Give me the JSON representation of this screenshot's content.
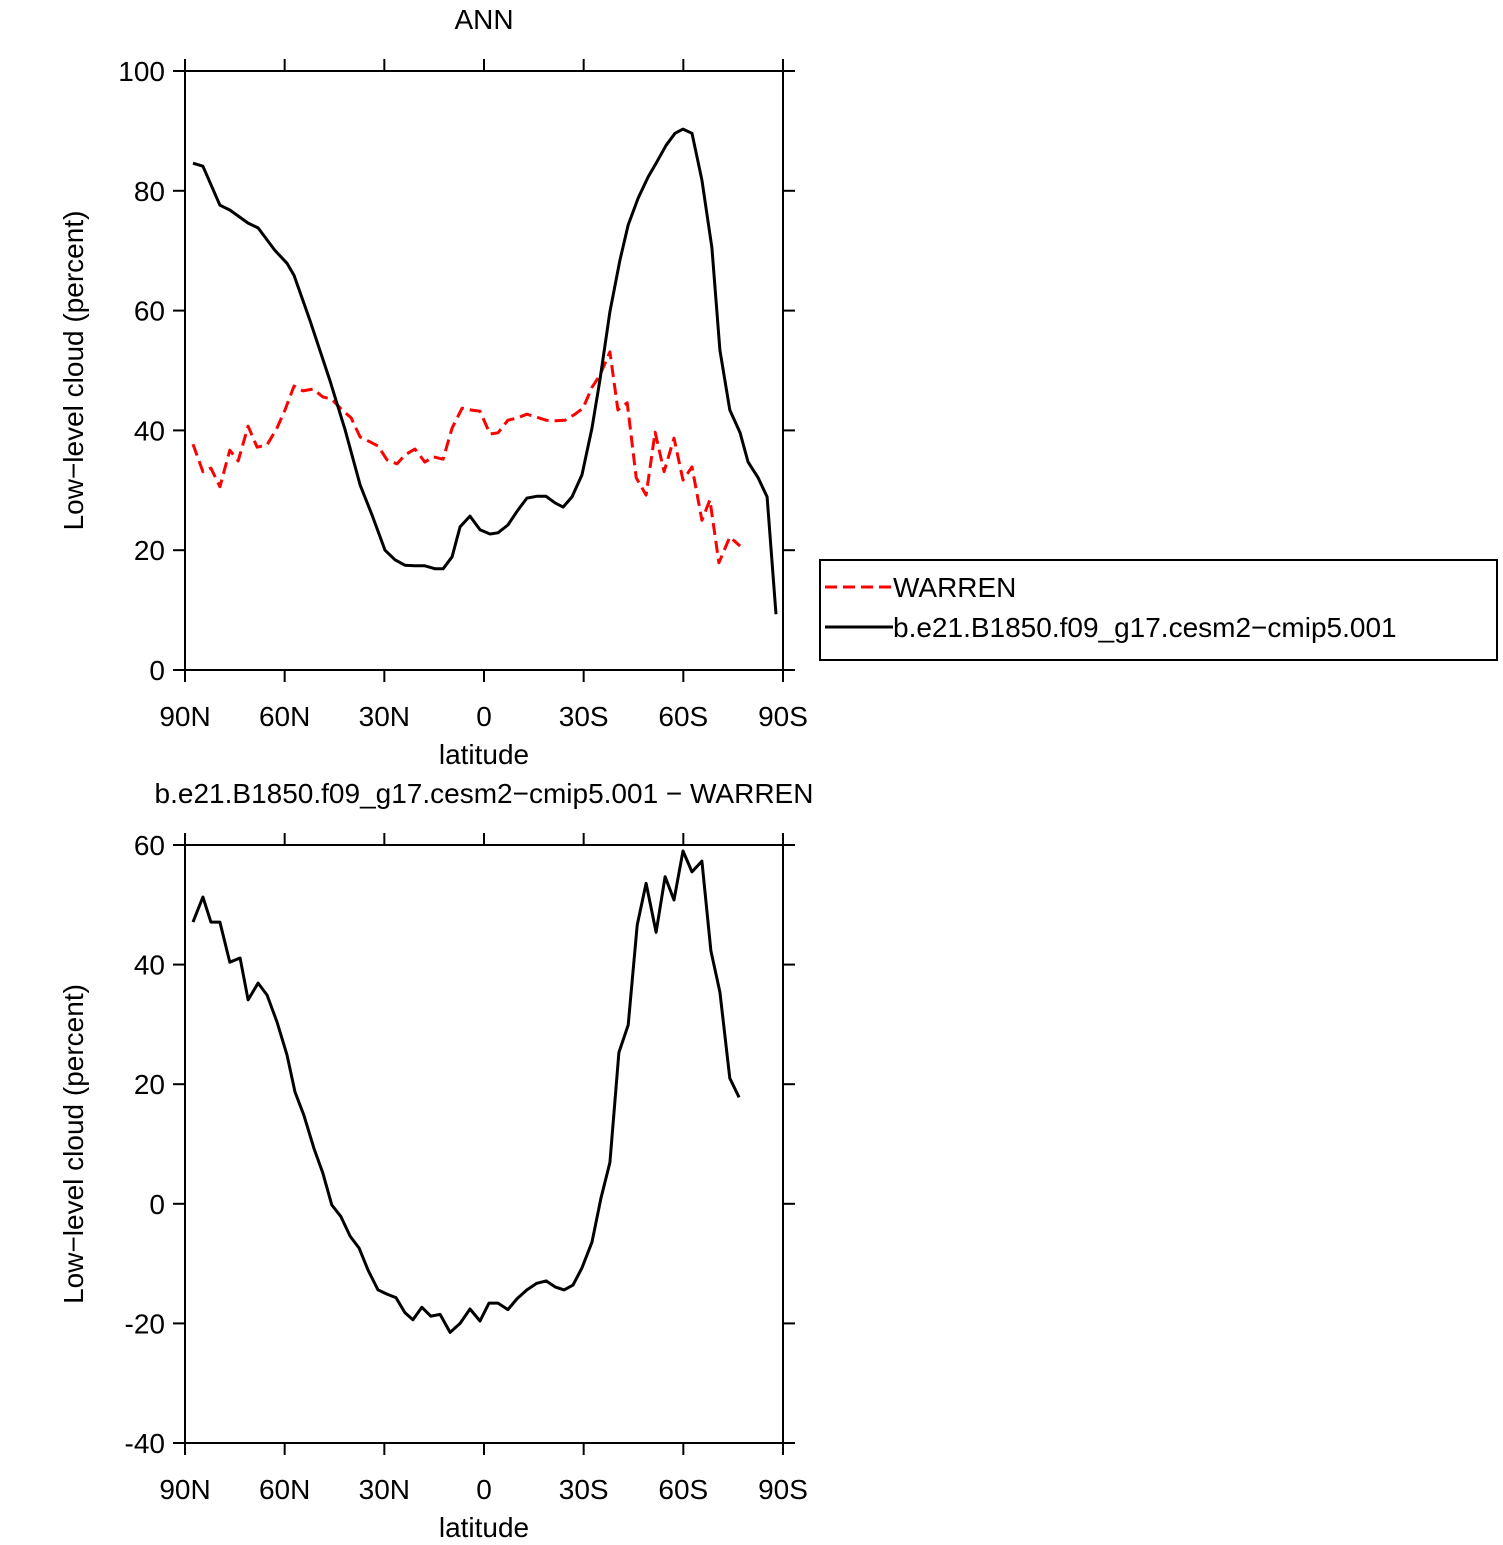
{
  "chart_data": [
    {
      "type": "line",
      "title": "ANN",
      "x_label": "latitude",
      "y_label": "Low−level cloud (percent)",
      "xlim": [
        90,
        -90
      ],
      "xticks": [
        {
          "value": 90,
          "label": "90N"
        },
        {
          "value": 60,
          "label": "60N"
        },
        {
          "value": 30,
          "label": "30N"
        },
        0,
        {
          "value": -30,
          "label": "30S"
        },
        {
          "value": -60,
          "label": "60S"
        },
        {
          "value": -90,
          "label": "90S"
        }
      ],
      "ylim": [
        0,
        100
      ],
      "yticks": [
        0,
        20,
        40,
        60,
        80,
        100
      ],
      "legend": "right",
      "series": [
        {
          "name": "WARREN",
          "color": "#ff0000",
          "dashed": true,
          "x": [
            87.6,
            84.6,
            82.2,
            79.5,
            76.5,
            74,
            71,
            68.3,
            65.3,
            62.3,
            59.9,
            57.2,
            54.5,
            51.5,
            48.5,
            45.8,
            42.7,
            40,
            37.3,
            34.3,
            31.9,
            29.2,
            26.2,
            23.8,
            20.8,
            17.8,
            15.3,
            12.3,
            9.6,
            6.6,
            3.9,
            1.2,
            -1.8,
            -4.2,
            -7.2,
            -10.2,
            -12.9,
            -15.9,
            -18.7,
            -21.4,
            -24.4,
            -27.4,
            -29.8,
            -32.5,
            -34.9,
            -37.9,
            -40.3,
            -43.1,
            -45.8,
            -48.8,
            -51.5,
            -54.2,
            -57.2,
            -59.9,
            -62.6,
            -65.6,
            -68,
            -70.7,
            -74,
            -77.1
          ],
          "values": [
            37.7,
            33.1,
            33.7,
            30.6,
            36.7,
            34.9,
            40.7,
            37.2,
            37.6,
            40.4,
            43.4,
            47.4,
            46.6,
            46.9,
            45.6,
            45.2,
            43.4,
            42.1,
            38.9,
            38.1,
            37.4,
            35.1,
            34.4,
            35.9,
            36.9,
            34.7,
            35.6,
            35.2,
            40.4,
            43.7,
            43.4,
            43.2,
            39.4,
            39.6,
            41.7,
            42.1,
            42.7,
            42.2,
            41.7,
            41.6,
            41.7,
            42.7,
            43.7,
            47.2,
            49.2,
            53.1,
            43.4,
            44.6,
            32.1,
            29.2,
            39.7,
            33.1,
            38.7,
            31.7,
            33.9,
            25,
            28.4,
            17.9,
            22.2,
            20.7
          ]
        },
        {
          "name": "b.e21.B1850.f09_g17.cesm2−cmip5.001",
          "color": "#000000",
          "dashed": false,
          "x": [
            87.6,
            84.6,
            79.5,
            76.5,
            71,
            68,
            63,
            59.3,
            57.2,
            52.4,
            46.4,
            41.8,
            37.3,
            33.7,
            29.8,
            26.8,
            23.8,
            20.8,
            17.8,
            14.7,
            12.3,
            9.6,
            7.2,
            4.2,
            1.2,
            -1.8,
            -4.2,
            -7.2,
            -10.2,
            -12.9,
            -15.9,
            -18.7,
            -21.4,
            -23.8,
            -26.5,
            -29.5,
            -32.5,
            -34.9,
            -37.9,
            -40.9,
            -43.4,
            -46.4,
            -49.4,
            -51.8,
            -54.8,
            -57.5,
            -59.9,
            -62.6,
            -65.6,
            -68.6,
            -71,
            -74,
            -77.1,
            -79.5,
            -82.5,
            -85.2,
            -87.9
          ],
          "values": [
            84.6,
            84.1,
            77.6,
            76.8,
            74.6,
            73.8,
            70.1,
            67.9,
            65.9,
            58.4,
            48.4,
            40.1,
            30.9,
            25.9,
            20,
            18.4,
            17.5,
            17.4,
            17.4,
            16.9,
            16.9,
            18.9,
            23.9,
            25.7,
            23.4,
            22.7,
            22.9,
            24.2,
            26.7,
            28.7,
            29,
            29,
            27.9,
            27.2,
            28.9,
            32.6,
            40.4,
            48.4,
            59.8,
            68.4,
            74.3,
            78.8,
            82.3,
            84.6,
            87.6,
            89.6,
            90.3,
            89.6,
            81.8,
            70.5,
            53.4,
            43.4,
            39.6,
            34.7,
            32.1,
            28.9,
            9.3
          ]
        }
      ]
    },
    {
      "type": "line",
      "title": "b.e21.B1850.f09_g17.cesm2−cmip5.001 − WARREN",
      "x_label": "latitude",
      "y_label": "Low−level cloud (percent)",
      "xlim": [
        90,
        -90
      ],
      "xticks": [
        {
          "value": 90,
          "label": "90N"
        },
        {
          "value": 60,
          "label": "60N"
        },
        {
          "value": 30,
          "label": "30N"
        },
        0,
        {
          "value": -30,
          "label": "30S"
        },
        {
          "value": -60,
          "label": "60S"
        },
        {
          "value": -90,
          "label": "90S"
        }
      ],
      "ylim": [
        -40,
        60
      ],
      "yticks": [
        -40,
        -20,
        0,
        20,
        40,
        60
      ],
      "series": [
        {
          "color": "#000000",
          "dashed": false,
          "x": [
            87.6,
            84.6,
            82.2,
            79.5,
            76.5,
            73.4,
            71,
            68,
            65.3,
            62.3,
            59.3,
            56.9,
            54.2,
            51.2,
            48.5,
            45.8,
            43.1,
            40.3,
            37.6,
            34.9,
            31.9,
            29.2,
            26.5,
            23.8,
            21.4,
            18.7,
            16,
            13.2,
            10.2,
            7.2,
            4.2,
            1.2,
            -1.5,
            -4.2,
            -7.2,
            -9.9,
            -12.9,
            -15.9,
            -18.7,
            -21.4,
            -24.1,
            -26.8,
            -29.5,
            -32.5,
            -35.2,
            -37.9,
            -40.6,
            -43.4,
            -46.1,
            -48.8,
            -51.8,
            -54.5,
            -57.2,
            -59.9,
            -62.6,
            -65.6,
            -68.3,
            -71,
            -74,
            -76.8
          ],
          "values": [
            47.1,
            51.3,
            47.1,
            47.1,
            40.4,
            41.1,
            34.1,
            36.9,
            34.9,
            30.4,
            24.9,
            18.7,
            14.8,
            9.3,
            5.1,
            -0.2,
            -2.1,
            -5.4,
            -7.4,
            -11.1,
            -14.4,
            -15.1,
            -15.7,
            -18.2,
            -19.4,
            -17.3,
            -18.8,
            -18.5,
            -21.5,
            -20,
            -17.6,
            -19.6,
            -16.6,
            -16.6,
            -17.7,
            -15.9,
            -14.4,
            -13.3,
            -12.9,
            -13.9,
            -14.4,
            -13.6,
            -10.7,
            -6.4,
            0.9,
            6.9,
            25.3,
            29.9,
            46.6,
            53.6,
            45.4,
            54.7,
            50.8,
            59,
            55.5,
            57.3,
            42.3,
            35.4,
            21,
            17.8
          ]
        }
      ]
    }
  ]
}
